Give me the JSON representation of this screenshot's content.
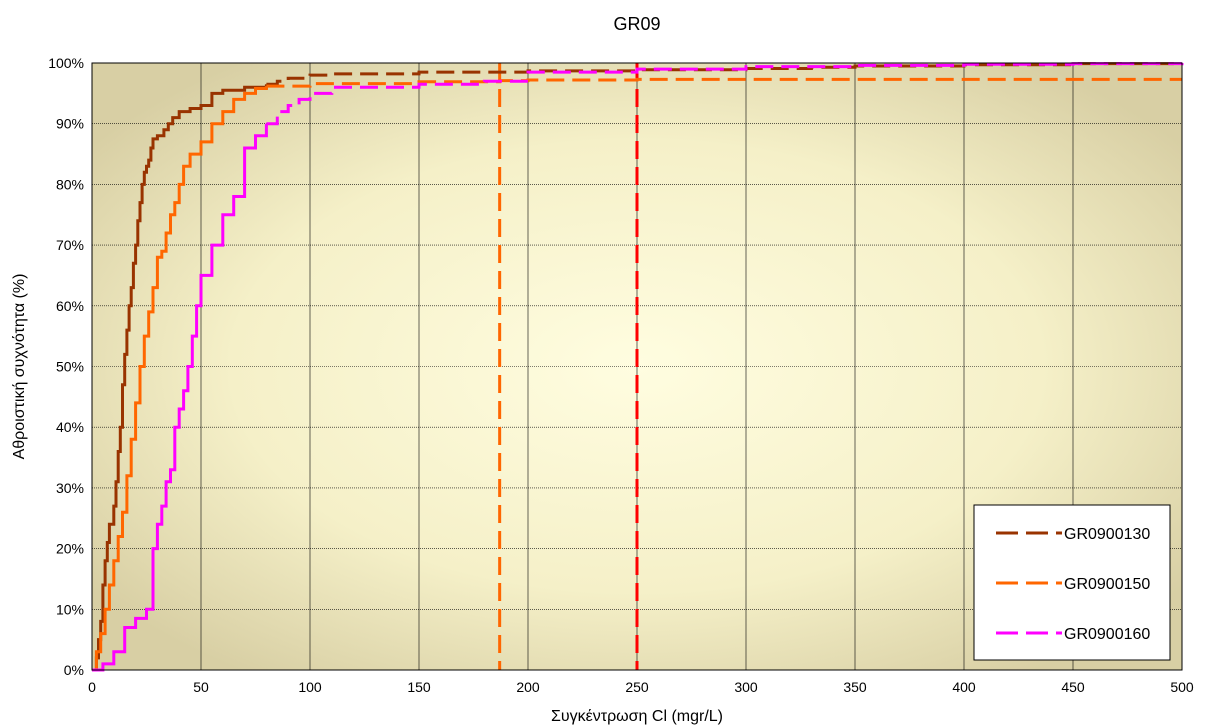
{
  "chart_data": {
    "type": "line",
    "title": "GR09",
    "xlabel": "Συγκέντρωση Cl (mgr/L)",
    "ylabel": "Αθροιστική συχνότητα (%)",
    "xlim": [
      0,
      500
    ],
    "ylim": [
      0,
      100
    ],
    "x_ticks": [
      0,
      50,
      100,
      150,
      200,
      250,
      300,
      350,
      400,
      450,
      500
    ],
    "y_ticks": [
      0,
      10,
      20,
      30,
      40,
      50,
      60,
      70,
      80,
      90,
      100
    ],
    "y_tick_suffix": "%",
    "grid": true,
    "legend_position": "bottom-right",
    "series": [
      {
        "name": "GR0900130",
        "color": "#993300",
        "x": [
          0,
          2,
          3,
          4,
          5,
          6,
          7,
          8,
          10,
          11,
          12,
          13,
          14,
          15,
          16,
          17,
          18,
          19,
          20,
          21,
          22,
          23,
          24,
          25,
          26,
          27,
          28,
          30,
          33,
          35,
          37,
          40,
          45,
          50,
          55,
          60,
          70,
          80,
          85,
          90,
          100,
          110,
          150,
          200,
          250,
          300,
          330,
          350,
          400,
          450,
          500
        ],
        "y": [
          0,
          2,
          5,
          8,
          14,
          18,
          21,
          24,
          27,
          31,
          36,
          40,
          47,
          52,
          56,
          60,
          63,
          67,
          70,
          74,
          77,
          80,
          82,
          83,
          84,
          86,
          87.5,
          88,
          89,
          90,
          91,
          92,
          92.5,
          93,
          95,
          95.5,
          96,
          96.5,
          97,
          97.5,
          98,
          98.2,
          98.5,
          98.7,
          98.9,
          99.1,
          99.3,
          99.5,
          99.7,
          99.9,
          100
        ]
      },
      {
        "name": "GR0900150",
        "color": "#FF6600",
        "x": [
          0,
          2,
          4,
          6,
          8,
          10,
          12,
          14,
          16,
          18,
          20,
          22,
          24,
          26,
          28,
          30,
          32,
          34,
          36,
          38,
          40,
          42,
          45,
          50,
          55,
          60,
          65,
          70,
          75,
          80,
          100,
          150,
          187,
          200,
          250,
          300,
          350,
          400,
          450,
          500
        ],
        "y": [
          0,
          3,
          6,
          10,
          14,
          18,
          22,
          26,
          32,
          38,
          44,
          50,
          55,
          59,
          63,
          68,
          69,
          72,
          75,
          77,
          80,
          83,
          85,
          87,
          90,
          92,
          94,
          95,
          95.8,
          96.2,
          96.6,
          96.9,
          97.1,
          97.2,
          97.3,
          97.3,
          97.3,
          97.3,
          97.3,
          97.3
        ]
      },
      {
        "name": "GR0900160",
        "color": "#FF00FF",
        "x": [
          0,
          5,
          10,
          15,
          20,
          25,
          28,
          30,
          32,
          34,
          36,
          38,
          40,
          42,
          44,
          46,
          48,
          50,
          55,
          60,
          65,
          70,
          75,
          80,
          85,
          90,
          95,
          100,
          110,
          150,
          180,
          200,
          250,
          300,
          350,
          400,
          450,
          500
        ],
        "y": [
          0,
          1,
          3,
          7,
          8.5,
          10,
          20,
          24,
          27,
          31,
          33,
          40,
          43,
          46,
          50,
          55,
          60,
          65,
          70,
          75,
          78,
          86,
          88,
          90,
          92,
          93,
          94,
          95,
          96,
          96.5,
          97,
          98.5,
          99,
          99.4,
          99.6,
          99.8,
          99.9,
          100
        ]
      }
    ],
    "reference_lines": [
      {
        "x": 187,
        "color": "#FF6600"
      },
      {
        "x": 250,
        "color": "#FF0000"
      }
    ]
  }
}
